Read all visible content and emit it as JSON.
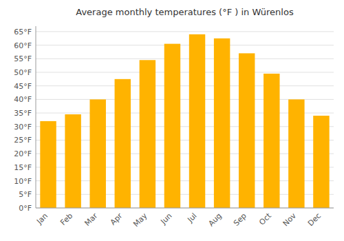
{
  "chart_data": {
    "type": "bar",
    "title": "Average monthly temperatures (°F ) in Würenlos",
    "categories": [
      "Jan",
      "Feb",
      "Mar",
      "Apr",
      "May",
      "Jun",
      "Jul",
      "Aug",
      "Sep",
      "Oct",
      "Nov",
      "Dec"
    ],
    "values": [
      32,
      34.5,
      40,
      47.5,
      54.5,
      60.5,
      64,
      62.5,
      57,
      49.5,
      40,
      34
    ],
    "color": "#FFB300",
    "ylim": [
      0,
      67
    ],
    "yticks": [
      {
        "value": 0,
        "label": "0°F"
      },
      {
        "value": 5,
        "label": "5°F"
      },
      {
        "value": 10,
        "label": "10°F"
      },
      {
        "value": 15,
        "label": "15°F"
      },
      {
        "value": 20,
        "label": "20°F"
      },
      {
        "value": 25,
        "label": "25°F"
      },
      {
        "value": 30,
        "label": "30°F"
      },
      {
        "value": 35,
        "label": "35°F"
      },
      {
        "value": 40,
        "label": "40°F"
      },
      {
        "value": 45,
        "label": "45°F"
      },
      {
        "value": 50,
        "label": "50°F"
      },
      {
        "value": 55,
        "label": "55°F"
      },
      {
        "value": 60,
        "label": "60°F"
      },
      {
        "value": 65,
        "label": "65°F"
      }
    ],
    "grid": true
  }
}
